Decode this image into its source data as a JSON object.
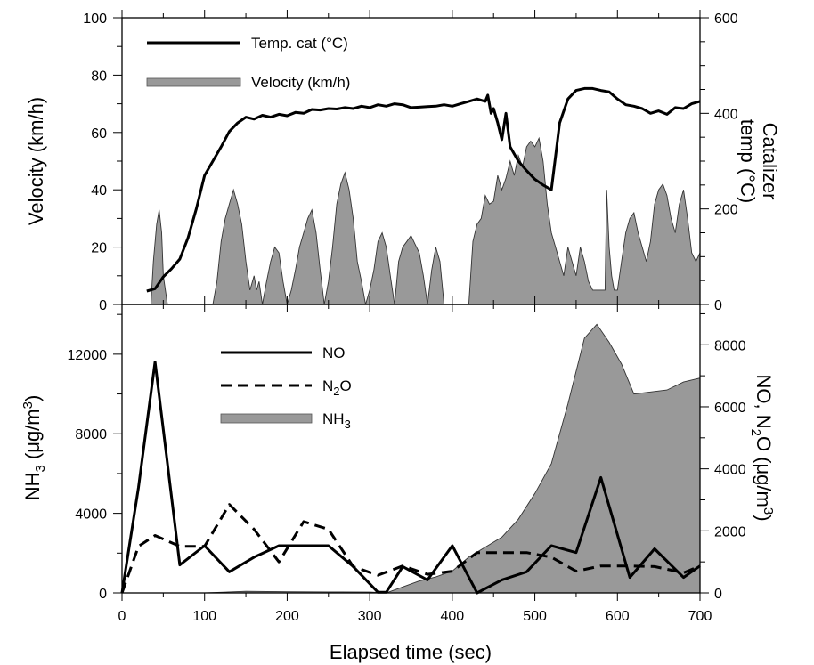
{
  "chart_data": [
    {
      "type": "line",
      "panel": "top",
      "xlim": [
        0,
        700
      ],
      "xticks": [
        "0",
        "100",
        "200",
        "300",
        "400",
        "500",
        "600",
        "700"
      ],
      "ylabel": "Velocity (km/h)",
      "ylim": [
        0,
        100
      ],
      "yticks": [
        "0",
        "20",
        "40",
        "60",
        "80",
        "100"
      ],
      "y2label_line1": "Catalizer",
      "y2label_line2": "temp (°C)",
      "y2lim": [
        0,
        600
      ],
      "y2ticks": [
        "0",
        "200",
        "400",
        "600"
      ],
      "legend_position": "top-left",
      "grid": false,
      "series": [
        {
          "name": "Temp. cat (°C)",
          "axis": "right",
          "style": "solid",
          "x": [
            0,
            30,
            40,
            50,
            60,
            70,
            80,
            90,
            100,
            110,
            120,
            130,
            140,
            150,
            160,
            170,
            180,
            190,
            200,
            210,
            220,
            230,
            240,
            250,
            260,
            270,
            280,
            290,
            300,
            310,
            320,
            330,
            340,
            350,
            360,
            370,
            380,
            390,
            400,
            410,
            420,
            430,
            440,
            443,
            447,
            450,
            455,
            460,
            465,
            470,
            480,
            490,
            500,
            510,
            520,
            525,
            530,
            540,
            550,
            560,
            570,
            580,
            590,
            600,
            610,
            620,
            630,
            640,
            650,
            660,
            670,
            680,
            690,
            700
          ],
          "values": [
            null,
            28,
            33,
            58,
            75,
            95,
            140,
            200,
            270,
            300,
            330,
            362,
            380,
            392,
            388,
            396,
            392,
            398,
            395,
            402,
            400,
            408,
            407,
            410,
            409,
            412,
            410,
            415,
            412,
            418,
            415,
            420,
            418,
            412,
            413,
            414,
            415,
            418,
            415,
            420,
            425,
            430,
            425,
            438,
            400,
            410,
            380,
            345,
            400,
            330,
            300,
            280,
            262,
            250,
            240,
            310,
            380,
            430,
            448,
            452,
            452,
            448,
            445,
            430,
            418,
            415,
            410,
            400,
            405,
            398,
            412,
            410,
            420,
            425
          ]
        },
        {
          "name": "Velocity (km/h)",
          "axis": "left",
          "style": "area",
          "x": [
            0,
            35,
            38,
            42,
            45,
            48,
            50,
            55,
            80,
            110,
            115,
            120,
            125,
            130,
            135,
            140,
            145,
            150,
            155,
            160,
            163,
            166,
            170,
            175,
            180,
            185,
            190,
            195,
            200,
            205,
            210,
            215,
            220,
            225,
            230,
            235,
            240,
            245,
            250,
            255,
            260,
            265,
            270,
            275,
            280,
            285,
            290,
            295,
            300,
            305,
            310,
            315,
            320,
            325,
            330,
            335,
            340,
            345,
            350,
            355,
            360,
            365,
            370,
            375,
            380,
            385,
            390,
            395,
            400,
            405,
            410,
            420,
            425,
            430,
            435,
            440,
            445,
            450,
            455,
            460,
            465,
            470,
            475,
            480,
            485,
            490,
            495,
            500,
            505,
            510,
            515,
            520,
            525,
            530,
            535,
            540,
            545,
            550,
            555,
            560,
            565,
            570,
            575,
            580,
            585,
            587,
            590,
            593,
            596,
            600,
            605,
            610,
            615,
            620,
            625,
            630,
            635,
            640,
            645,
            650,
            655,
            660,
            665,
            670,
            675,
            680,
            685,
            690,
            695,
            700
          ],
          "values": [
            0,
            0,
            15,
            28,
            33,
            25,
            10,
            0,
            0,
            0,
            8,
            22,
            30,
            35,
            40,
            35,
            28,
            15,
            5,
            10,
            5,
            8,
            0,
            8,
            15,
            20,
            18,
            8,
            0,
            5,
            12,
            20,
            25,
            30,
            33,
            25,
            12,
            0,
            8,
            20,
            35,
            42,
            46,
            40,
            30,
            15,
            8,
            0,
            5,
            12,
            22,
            25,
            20,
            10,
            0,
            15,
            20,
            22,
            24,
            21,
            18,
            10,
            0,
            12,
            20,
            15,
            0,
            0,
            0,
            0,
            0,
            0,
            22,
            28,
            30,
            38,
            35,
            36,
            45,
            40,
            44,
            50,
            45,
            52,
            48,
            55,
            57,
            55,
            58,
            50,
            35,
            25,
            20,
            15,
            10,
            20,
            15,
            10,
            20,
            15,
            8,
            5,
            5,
            5,
            5,
            40,
            20,
            10,
            5,
            5,
            15,
            25,
            30,
            32,
            25,
            20,
            15,
            22,
            35,
            40,
            42,
            38,
            30,
            25,
            35,
            40,
            30,
            18,
            15,
            18
          ]
        }
      ]
    },
    {
      "type": "line",
      "panel": "bottom",
      "xlabel": "Elapsed time (sec)",
      "xlim": [
        0,
        700
      ],
      "xticks": [
        "0",
        "100",
        "200",
        "300",
        "400",
        "500",
        "600",
        "700"
      ],
      "ylabel_main": "NH",
      "ylabel_sub": "3",
      "ylabel_unit": " (μg/m",
      "ylabel_sup": "3",
      "ylabel_close": ")",
      "ylim": [
        0,
        14500
      ],
      "yticks": [
        "0",
        "4000",
        "8000",
        "12000"
      ],
      "y2label_a": "NO, N",
      "y2label_sub": "2",
      "y2label_b": "O (μg/m",
      "y2label_sup": "3",
      "y2label_close": ")",
      "y2lim": [
        0,
        9300
      ],
      "y2ticks": [
        "0",
        "2000",
        "4000",
        "6000",
        "8000"
      ],
      "legend_position": "top-center",
      "grid": false,
      "series": [
        {
          "name": "NO",
          "axis": "right",
          "style": "solid",
          "x": [
            0,
            20,
            40,
            70,
            100,
            130,
            160,
            190,
            220,
            250,
            280,
            310,
            320,
            340,
            370,
            400,
            430,
            460,
            490,
            520,
            550,
            580,
            615,
            645,
            680,
            700
          ],
          "values": [
            0,
            3400,
            7450,
            900,
            1520,
            680,
            1150,
            1520,
            1520,
            1520,
            850,
            20,
            20,
            850,
            420,
            1520,
            0,
            420,
            680,
            1520,
            1300,
            3720,
            500,
            1420,
            500,
            870
          ]
        },
        {
          "name": "N2O",
          "name_main": "N",
          "name_sub": "2",
          "name_tail": "O",
          "axis": "right",
          "style": "dashed",
          "x": [
            0,
            20,
            40,
            70,
            100,
            130,
            160,
            190,
            220,
            250,
            280,
            310,
            340,
            370,
            400,
            430,
            460,
            490,
            520,
            550,
            580,
            615,
            645,
            680,
            700
          ],
          "values": [
            0,
            1500,
            1850,
            1500,
            1500,
            2850,
            2050,
            1000,
            2300,
            2050,
            850,
            570,
            870,
            600,
            700,
            1300,
            1300,
            1300,
            1150,
            700,
            870,
            870,
            850,
            650,
            870
          ]
        },
        {
          "name": "NH3",
          "name_main": "NH",
          "name_sub": "3",
          "axis": "left",
          "style": "area",
          "x": [
            0,
            100,
            150,
            200,
            250,
            300,
            320,
            340,
            360,
            380,
            400,
            420,
            440,
            460,
            480,
            500,
            520,
            540,
            560,
            575,
            590,
            605,
            620,
            640,
            660,
            680,
            700
          ],
          "values": [
            0,
            0,
            80,
            60,
            50,
            40,
            0,
            300,
            600,
            800,
            1100,
            1800,
            2300,
            2800,
            3700,
            5000,
            6500,
            9500,
            12800,
            13500,
            12600,
            11500,
            10000,
            10100,
            10200,
            10600,
            10800
          ]
        }
      ]
    }
  ]
}
